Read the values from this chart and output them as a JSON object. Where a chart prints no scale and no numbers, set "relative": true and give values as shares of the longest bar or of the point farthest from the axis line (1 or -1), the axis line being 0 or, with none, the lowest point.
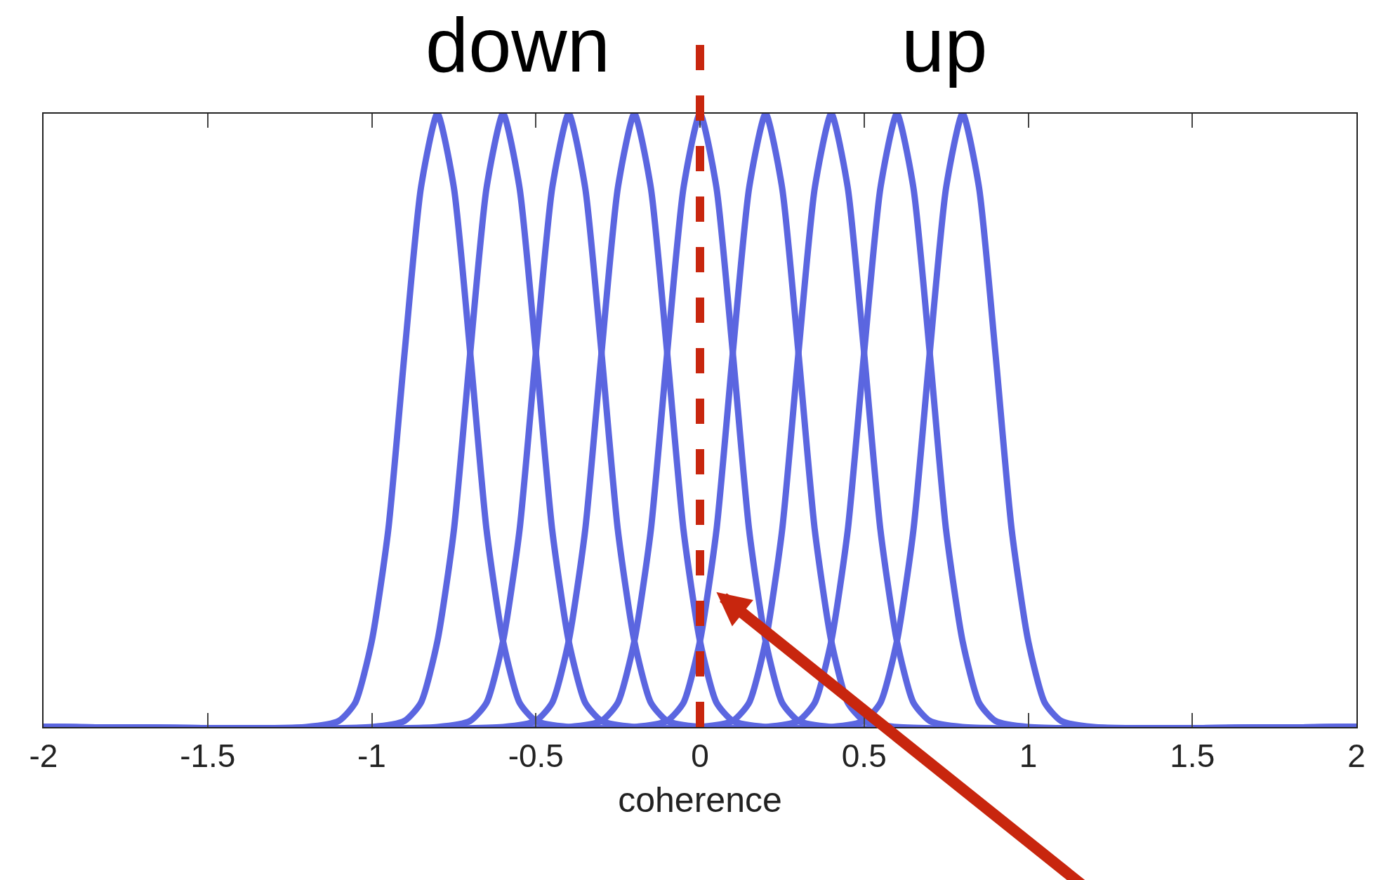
{
  "chart_data": {
    "type": "line",
    "relative": true,
    "xlabel": "coherence",
    "annotations": [
      "down",
      "up"
    ],
    "xlim": [
      -2,
      2
    ],
    "xticks": [
      -2,
      -1.5,
      -1,
      -0.5,
      0,
      0.5,
      1,
      1.5,
      2
    ],
    "marker": "none",
    "line_style": "solid",
    "ref_lines": [
      {
        "axis": "x",
        "value": 0,
        "color": "#c8260e",
        "line_style": "dashed"
      }
    ],
    "series": [
      {
        "color": "#5b66e0",
        "x": [
          -2,
          -1.2,
          -1.1,
          -1.05,
          -1.0,
          -0.95,
          -0.9,
          -0.85,
          -0.8,
          -0.75,
          -0.7,
          -0.65,
          -0.6,
          -0.55,
          -0.5,
          -0.4,
          2
        ],
        "values": [
          0,
          0,
          0.01,
          0.04,
          0.14,
          0.32,
          0.61,
          0.88,
          1,
          0.88,
          0.61,
          0.32,
          0.14,
          0.04,
          0.01,
          0,
          0
        ]
      },
      {
        "color": "#5b66e0",
        "x": [
          -2,
          -1.0,
          -0.9,
          -0.85,
          -0.8,
          -0.75,
          -0.7,
          -0.65,
          -0.6,
          -0.55,
          -0.5,
          -0.45,
          -0.4,
          -0.35,
          -0.3,
          -0.2,
          2
        ],
        "values": [
          0,
          0,
          0.01,
          0.04,
          0.14,
          0.32,
          0.61,
          0.88,
          1,
          0.88,
          0.61,
          0.32,
          0.14,
          0.04,
          0.01,
          0,
          0
        ]
      },
      {
        "color": "#5b66e0",
        "x": [
          -2,
          -0.8,
          -0.7,
          -0.65,
          -0.6,
          -0.55,
          -0.5,
          -0.45,
          -0.4,
          -0.35,
          -0.3,
          -0.25,
          -0.2,
          -0.15,
          -0.1,
          0.0,
          2
        ],
        "values": [
          0,
          0,
          0.01,
          0.04,
          0.14,
          0.32,
          0.61,
          0.88,
          1,
          0.88,
          0.61,
          0.32,
          0.14,
          0.04,
          0.01,
          0,
          0
        ]
      },
      {
        "color": "#5b66e0",
        "x": [
          -2,
          -0.6,
          -0.5,
          -0.45,
          -0.4,
          -0.35,
          -0.3,
          -0.25,
          -0.2,
          -0.15,
          -0.1,
          -0.05,
          0.0,
          0.05,
          0.1,
          0.2,
          2
        ],
        "values": [
          0,
          0,
          0.01,
          0.04,
          0.14,
          0.32,
          0.61,
          0.88,
          1,
          0.88,
          0.61,
          0.32,
          0.14,
          0.04,
          0.01,
          0,
          0
        ]
      },
      {
        "color": "#5b66e0",
        "x": [
          -2,
          -0.4,
          -0.3,
          -0.25,
          -0.2,
          -0.15,
          -0.1,
          -0.05,
          0.0,
          0.05,
          0.1,
          0.15,
          0.2,
          0.25,
          0.3,
          0.4,
          2
        ],
        "values": [
          0,
          0,
          0.01,
          0.04,
          0.14,
          0.32,
          0.61,
          0.88,
          1,
          0.88,
          0.61,
          0.32,
          0.14,
          0.04,
          0.01,
          0,
          0
        ]
      },
      {
        "color": "#5b66e0",
        "x": [
          -2,
          -0.2,
          -0.1,
          -0.05,
          0.0,
          0.05,
          0.1,
          0.15,
          0.2,
          0.25,
          0.3,
          0.35,
          0.4,
          0.45,
          0.5,
          0.6,
          2
        ],
        "values": [
          0,
          0,
          0.01,
          0.04,
          0.14,
          0.32,
          0.61,
          0.88,
          1,
          0.88,
          0.61,
          0.32,
          0.14,
          0.04,
          0.01,
          0,
          0
        ]
      },
      {
        "color": "#5b66e0",
        "x": [
          -2,
          0.0,
          0.1,
          0.15,
          0.2,
          0.25,
          0.3,
          0.35,
          0.4,
          0.45,
          0.5,
          0.55,
          0.6,
          0.65,
          0.7,
          0.8,
          2
        ],
        "values": [
          0,
          0,
          0.01,
          0.04,
          0.14,
          0.32,
          0.61,
          0.88,
          1,
          0.88,
          0.61,
          0.32,
          0.14,
          0.04,
          0.01,
          0,
          0
        ]
      },
      {
        "color": "#5b66e0",
        "x": [
          -2,
          0.2,
          0.3,
          0.35,
          0.4,
          0.45,
          0.5,
          0.55,
          0.6,
          0.65,
          0.7,
          0.75,
          0.8,
          0.85,
          0.9,
          1.0,
          2
        ],
        "values": [
          0,
          0,
          0.01,
          0.04,
          0.14,
          0.32,
          0.61,
          0.88,
          1,
          0.88,
          0.61,
          0.32,
          0.14,
          0.04,
          0.01,
          0,
          0
        ]
      },
      {
        "color": "#5b66e0",
        "x": [
          -2,
          0.4,
          0.5,
          0.55,
          0.6,
          0.65,
          0.7,
          0.75,
          0.8,
          0.85,
          0.9,
          0.95,
          1.0,
          1.05,
          1.1,
          1.2,
          2
        ],
        "values": [
          0,
          0,
          0.01,
          0.04,
          0.14,
          0.32,
          0.61,
          0.88,
          1,
          0.88,
          0.61,
          0.32,
          0.14,
          0.04,
          0.01,
          0,
          0
        ]
      }
    ]
  }
}
